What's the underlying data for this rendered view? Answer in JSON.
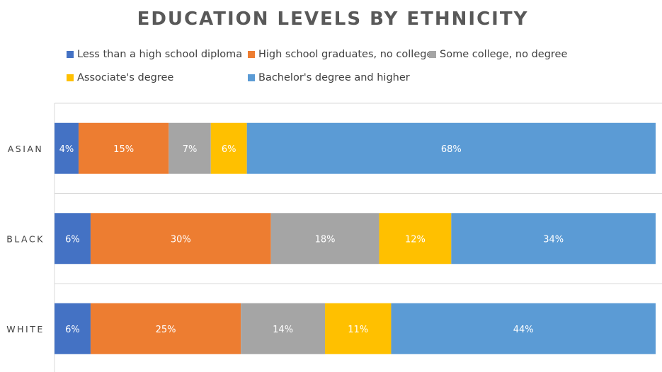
{
  "chart_data": {
    "type": "bar",
    "orientation": "horizontal",
    "stacked": true,
    "title": "EDUCATION LEVELS BY ETHNICITY",
    "categories": [
      "ASIAN",
      "BLACK",
      "WHITE"
    ],
    "xlim": [
      0,
      100
    ],
    "grid": true,
    "legend_position": "top",
    "series": [
      {
        "name": "Less than a high school diploma",
        "color": "#4472C4",
        "values": [
          4,
          6,
          6
        ],
        "labels": [
          "4%",
          "6%",
          "6%"
        ]
      },
      {
        "name": "High school graduates, no college",
        "color": "#ED7D31",
        "values": [
          15,
          30,
          25
        ],
        "labels": [
          "15%",
          "30%",
          "25%"
        ]
      },
      {
        "name": "Some college, no degree",
        "color": "#A5A5A5",
        "values": [
          7,
          18,
          14
        ],
        "labels": [
          "7%",
          "18%",
          "14%"
        ]
      },
      {
        "name": "Associate's degree",
        "color": "#FFC000",
        "values": [
          6,
          12,
          11
        ],
        "labels": [
          "6%",
          "12%",
          "11%"
        ]
      },
      {
        "name": "Bachelor's degree and higher",
        "color": "#5B9BD5",
        "values": [
          68,
          34,
          44
        ],
        "labels": [
          "68%",
          "34%",
          "44%"
        ]
      }
    ]
  }
}
